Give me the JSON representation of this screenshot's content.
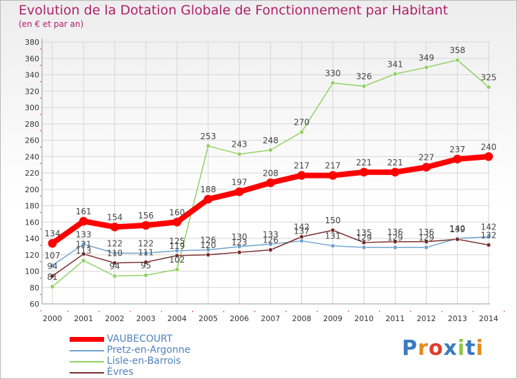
{
  "header": {
    "title": "Evolution de la Dotation Globale de Fonctionnement par Habitant",
    "subtitle": "(en € et par an)"
  },
  "logo": {
    "text": "Proxiti",
    "colors": [
      "#3a7abf",
      "#e58a1f",
      "#e23c2f",
      "#3a7abf",
      "#8dc63f",
      "#3a7abf",
      "#e58a1f"
    ]
  },
  "chart_data": {
    "type": "line",
    "x": [
      "2000",
      "2001",
      "2002",
      "2003",
      "2004",
      "2005",
      "2006",
      "2007",
      "2008",
      "2009",
      "2010",
      "2011",
      "2012",
      "2013",
      "2014"
    ],
    "ylim": [
      60,
      380
    ],
    "yticks": [
      60,
      80,
      100,
      120,
      140,
      160,
      180,
      200,
      220,
      240,
      260,
      280,
      300,
      320,
      340,
      360,
      380
    ],
    "grid": true,
    "legend_position": "bottom-left",
    "series": [
      {
        "name": "VAUBECOURT",
        "color": "#ff0000",
        "width": 8,
        "values": [
          134,
          161,
          154,
          156,
          160,
          188,
          197,
          208,
          217,
          217,
          221,
          221,
          227,
          237,
          240
        ],
        "labels": [
          "134",
          "161",
          "154",
          "156",
          "160",
          "188",
          "197",
          "208",
          "217",
          "217",
          "221",
          "221",
          "227",
          "237",
          "240"
        ]
      },
      {
        "name": "Pretz-en-Argonne",
        "color": "#6fa1cf",
        "width": 1.5,
        "values": [
          107,
          133,
          122,
          122,
          125,
          126,
          130,
          133,
          137,
          131,
          129,
          129,
          129,
          140,
          142
        ],
        "labels": [
          "107",
          "133",
          "122",
          "122",
          "125",
          "126",
          "130",
          "133",
          "137",
          "131",
          "129",
          "129",
          "129",
          "140",
          "142"
        ]
      },
      {
        "name": "Lisle-en-Barrois",
        "color": "#90d060",
        "width": 1.5,
        "values": [
          81,
          113,
          94,
          95,
          102,
          253,
          243,
          248,
          270,
          330,
          326,
          341,
          349,
          358,
          325
        ],
        "labels": [
          "81",
          "113",
          "94",
          "95",
          "102",
          "253",
          "243",
          "248",
          "270",
          "330",
          "326",
          "341",
          "349",
          "358",
          "325"
        ]
      },
      {
        "name": "Èvres",
        "color": "#7a2a2a",
        "width": 1.5,
        "values": [
          94,
          121,
          110,
          111,
          119,
          120,
          123,
          126,
          142,
          150,
          135,
          136,
          136,
          139,
          132
        ],
        "labels": [
          "94",
          "121",
          "110",
          "111",
          "119",
          "120",
          "123",
          "126",
          "142",
          "150",
          "135",
          "136",
          "136",
          "139",
          "132"
        ]
      }
    ]
  }
}
